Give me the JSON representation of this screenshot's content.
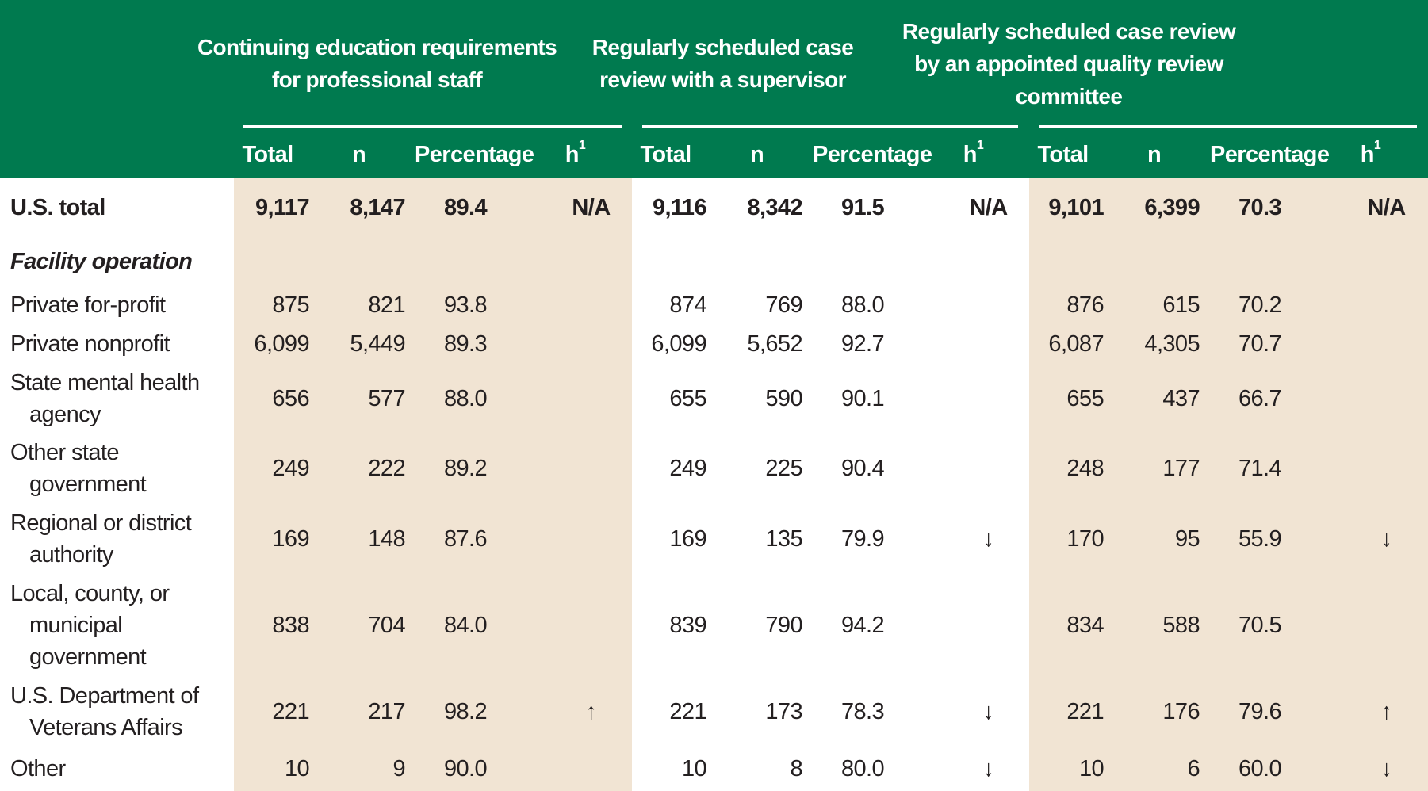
{
  "header": {
    "groups": [
      {
        "title_lines": [
          "Continuing education requirements",
          "for professional staff"
        ]
      },
      {
        "title_lines": [
          "Regularly scheduled case",
          "review with a supervisor"
        ]
      },
      {
        "title_lines": [
          "Regularly scheduled case review",
          "by an appointed quality review",
          "committee"
        ]
      }
    ],
    "columns": {
      "total": "Total",
      "n": "n",
      "percentage": "Percentage",
      "h": "h",
      "h_sup": "1"
    }
  },
  "rows": [
    {
      "type": "total",
      "label_lines": [
        "U.S. total"
      ],
      "height": 75,
      "groups": [
        [
          "9,117",
          "8,147",
          "89.4",
          "N/A"
        ],
        [
          "9,116",
          "8,342",
          "91.5",
          "N/A"
        ],
        [
          "9,101",
          "6,399",
          "70.3",
          "N/A"
        ]
      ]
    },
    {
      "type": "section",
      "label_lines": [
        "Facility operation"
      ],
      "height": 61,
      "groups": null
    },
    {
      "type": "row",
      "label_lines": [
        "Private for-profit"
      ],
      "height": 49,
      "groups": [
        [
          "875",
          "821",
          "93.8",
          ""
        ],
        [
          "874",
          "769",
          "88.0",
          ""
        ],
        [
          "876",
          "615",
          "70.2",
          ""
        ]
      ]
    },
    {
      "type": "row",
      "label_lines": [
        "Private nonprofit"
      ],
      "height": 49,
      "groups": [
        [
          "6,099",
          "5,449",
          "89.3",
          ""
        ],
        [
          "6,099",
          "5,652",
          "92.7",
          ""
        ],
        [
          "6,087",
          "4,305",
          "70.7",
          ""
        ]
      ]
    },
    {
      "type": "row",
      "label_lines": [
        "State mental health",
        "agency"
      ],
      "height": 89,
      "groups": [
        [
          "656",
          "577",
          "88.0",
          ""
        ],
        [
          "655",
          "590",
          "90.1",
          ""
        ],
        [
          "655",
          "437",
          "66.7",
          ""
        ]
      ]
    },
    {
      "type": "row",
      "label_lines": [
        "Other state",
        "government"
      ],
      "height": 88,
      "groups": [
        [
          "249",
          "222",
          "89.2",
          ""
        ],
        [
          "249",
          "225",
          "90.4",
          ""
        ],
        [
          "248",
          "177",
          "71.4",
          ""
        ]
      ]
    },
    {
      "type": "row",
      "label_lines": [
        "Regional or district",
        "authority"
      ],
      "height": 89,
      "groups": [
        [
          "169",
          "148",
          "87.6",
          ""
        ],
        [
          "169",
          "135",
          "79.9",
          "↓"
        ],
        [
          "170",
          "95",
          "55.9",
          "↓"
        ]
      ]
    },
    {
      "type": "row",
      "label_lines": [
        "Local, county, or",
        "municipal",
        "government"
      ],
      "height": 129,
      "groups": [
        [
          "838",
          "704",
          "84.0",
          ""
        ],
        [
          "839",
          "790",
          "94.2",
          ""
        ],
        [
          "834",
          "588",
          "70.5",
          ""
        ]
      ]
    },
    {
      "type": "row",
      "label_lines": [
        "U.S. Department of",
        "Veterans Affairs"
      ],
      "height": 89,
      "groups": [
        [
          "221",
          "217",
          "98.2",
          "↑"
        ],
        [
          "221",
          "173",
          "78.3",
          "↓"
        ],
        [
          "221",
          "176",
          "79.6",
          "↑"
        ]
      ]
    },
    {
      "type": "row",
      "label_lines": [
        "Other"
      ],
      "height": 56,
      "groups": [
        [
          "10",
          "9",
          "90.0",
          ""
        ],
        [
          "10",
          "8",
          "80.0",
          "↓"
        ],
        [
          "10",
          "6",
          "60.0",
          "↓"
        ]
      ]
    }
  ],
  "colors": {
    "header_green": "#007a4f",
    "band_tan": "#f1e4d3"
  }
}
